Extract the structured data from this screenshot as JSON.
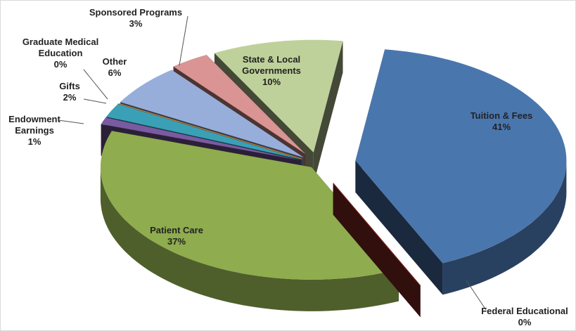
{
  "chart_data": {
    "type": "pie3d",
    "categories": [
      "Tuition & Fees",
      "Federal Educational",
      "Patient Care",
      "Endowment Earnings",
      "Gifts",
      "Graduate Medical Education",
      "Other",
      "Sponsored Programs",
      "State & Local Governments"
    ],
    "values": [
      41,
      0,
      37,
      1,
      2,
      0,
      6,
      3,
      10
    ],
    "value_labels": [
      "41%",
      "0%",
      "37%",
      "1%",
      "2%",
      "0%",
      "6%",
      "3%",
      "10%"
    ],
    "colors": [
      "#4a76ae",
      "#8b2b26",
      "#8fac4e",
      "#7a5aa0",
      "#3aa0b6",
      "#e58a2e",
      "#97aedb",
      "#d99493",
      "#bfd19a"
    ]
  }
}
